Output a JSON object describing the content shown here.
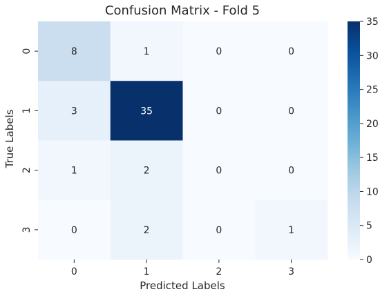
{
  "chart_data": {
    "type": "heatmap",
    "title": "Confusion Matrix - Fold 5",
    "xlabel": "Predicted Labels",
    "ylabel": "True Labels",
    "x_categories": [
      "0",
      "1",
      "2",
      "3"
    ],
    "y_categories": [
      "0",
      "1",
      "2",
      "3"
    ],
    "values": [
      [
        8,
        1,
        0,
        0
      ],
      [
        3,
        35,
        0,
        0
      ],
      [
        1,
        2,
        0,
        0
      ],
      [
        0,
        2,
        0,
        1
      ]
    ],
    "colormap": "Blues",
    "color_range": [
      0,
      35
    ],
    "colorbar_ticks": [
      "0",
      "5",
      "10",
      "15",
      "20",
      "25",
      "30",
      "35"
    ],
    "annotations": true
  }
}
